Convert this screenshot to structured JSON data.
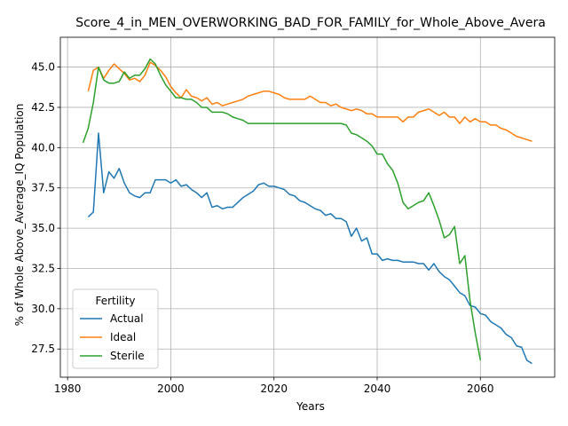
{
  "chart_data": {
    "type": "line",
    "title": "Score_4_in_MEN_OVERWORKING_BAD_FOR_FAMILY_for_Whole_Above_Avera",
    "xlabel": "Years",
    "ylabel": "% of Whole Above_Average_IQ Population",
    "xlim": [
      1978.6,
      2074.4
    ],
    "ylim": [
      25.75,
      46.85
    ],
    "xticks": [
      1980,
      2000,
      2020,
      2040,
      2060
    ],
    "yticks": [
      27.5,
      30.0,
      32.5,
      35.0,
      37.5,
      40.0,
      42.5,
      45.0
    ],
    "xtick_labels": [
      "1980",
      "2000",
      "2020",
      "2040",
      "2060"
    ],
    "ytick_labels": [
      "27.5",
      "30.0",
      "32.5",
      "35.0",
      "37.5",
      "40.0",
      "42.5",
      "45.0"
    ],
    "grid": true,
    "legend": {
      "title": "Fertility",
      "placement": "lower-left"
    },
    "series": [
      {
        "name": "Actual",
        "color": "#1f77b4",
        "x": [
          1984,
          1985,
          1986,
          1987,
          1988,
          1989,
          1990,
          1991,
          1992,
          1993,
          1994,
          1995,
          1996,
          1997,
          1998,
          1999,
          2000,
          2001,
          2002,
          2003,
          2004,
          2005,
          2006,
          2007,
          2008,
          2009,
          2010,
          2011,
          2012,
          2013,
          2014,
          2015,
          2016,
          2017,
          2018,
          2019,
          2020,
          2021,
          2022,
          2023,
          2024,
          2025,
          2026,
          2027,
          2028,
          2029,
          2030,
          2031,
          2032,
          2033,
          2034,
          2035,
          2036,
          2037,
          2038,
          2039,
          2040,
          2041,
          2042,
          2043,
          2044,
          2045,
          2046,
          2047,
          2048,
          2049,
          2050,
          2051,
          2052,
          2053,
          2054,
          2055,
          2056,
          2057,
          2058,
          2059,
          2060,
          2061,
          2062,
          2063,
          2064,
          2065,
          2066,
          2067,
          2068,
          2069,
          2070
        ],
        "values": [
          35.7,
          36.0,
          40.9,
          37.2,
          38.5,
          38.1,
          38.7,
          37.8,
          37.2,
          37.0,
          36.9,
          37.2,
          37.2,
          38.0,
          38.0,
          38.0,
          37.8,
          38.0,
          37.6,
          37.7,
          37.4,
          37.2,
          36.9,
          37.2,
          36.3,
          36.4,
          36.2,
          36.3,
          36.3,
          36.6,
          36.9,
          37.1,
          37.3,
          37.7,
          37.8,
          37.6,
          37.6,
          37.5,
          37.4,
          37.1,
          37.0,
          36.7,
          36.6,
          36.4,
          36.2,
          36.1,
          35.8,
          35.9,
          35.6,
          35.6,
          35.4,
          34.5,
          35.0,
          34.2,
          34.4,
          33.4,
          33.4,
          33.0,
          33.1,
          33.0,
          33.0,
          32.9,
          32.9,
          32.9,
          32.8,
          32.8,
          32.4,
          32.8,
          32.3,
          32.0,
          31.8,
          31.4,
          31.0,
          30.8,
          30.2,
          30.1,
          29.7,
          29.6,
          29.2,
          29.0,
          28.8,
          28.4,
          28.2,
          27.7,
          27.6,
          26.8,
          26.6
        ]
      },
      {
        "name": "Ideal",
        "color": "#ff7f0e",
        "x": [
          1984,
          1985,
          1986,
          1987,
          1988,
          1989,
          1990,
          1991,
          1992,
          1993,
          1994,
          1995,
          1996,
          1997,
          1998,
          1999,
          2000,
          2001,
          2002,
          2003,
          2004,
          2005,
          2006,
          2007,
          2008,
          2009,
          2010,
          2011,
          2012,
          2013,
          2014,
          2015,
          2016,
          2017,
          2018,
          2019,
          2020,
          2021,
          2022,
          2023,
          2024,
          2025,
          2026,
          2027,
          2028,
          2029,
          2030,
          2031,
          2032,
          2033,
          2034,
          2035,
          2036,
          2037,
          2038,
          2039,
          2040,
          2041,
          2042,
          2043,
          2044,
          2045,
          2046,
          2047,
          2048,
          2049,
          2050,
          2051,
          2052,
          2053,
          2054,
          2055,
          2056,
          2057,
          2058,
          2059,
          2060,
          2061,
          2062,
          2063,
          2064,
          2065,
          2066,
          2067,
          2068,
          2069,
          2070
        ],
        "values": [
          43.5,
          44.8,
          45.0,
          44.3,
          44.8,
          45.2,
          44.9,
          44.6,
          44.2,
          44.3,
          44.1,
          44.5,
          45.3,
          45.1,
          44.8,
          44.4,
          43.8,
          43.4,
          43.1,
          43.6,
          43.2,
          43.1,
          42.9,
          43.1,
          42.7,
          42.8,
          42.6,
          42.7,
          42.8,
          42.9,
          43.0,
          43.2,
          43.3,
          43.4,
          43.5,
          43.5,
          43.4,
          43.3,
          43.1,
          43.0,
          43.0,
          43.0,
          43.0,
          43.2,
          43.0,
          42.8,
          42.8,
          42.6,
          42.7,
          42.5,
          42.4,
          42.3,
          42.4,
          42.3,
          42.1,
          42.1,
          41.9,
          41.9,
          41.9,
          41.9,
          41.9,
          41.6,
          41.9,
          41.9,
          42.2,
          42.3,
          42.4,
          42.2,
          42.0,
          42.2,
          41.9,
          41.9,
          41.5,
          41.9,
          41.6,
          41.8,
          41.6,
          41.6,
          41.4,
          41.4,
          41.2,
          41.1,
          40.9,
          40.7,
          40.6,
          40.5,
          40.4
        ]
      },
      {
        "name": "Sterile",
        "color": "#2ca02c",
        "x": [
          1983,
          1984,
          1985,
          1986,
          1987,
          1988,
          1989,
          1990,
          1991,
          1992,
          1993,
          1994,
          1995,
          1996,
          1997,
          1998,
          1999,
          2000,
          2001,
          2002,
          2003,
          2004,
          2005,
          2006,
          2007,
          2008,
          2009,
          2010,
          2011,
          2012,
          2013,
          2014,
          2015,
          2016,
          2017,
          2018,
          2019,
          2020,
          2021,
          2022,
          2023,
          2024,
          2025,
          2026,
          2027,
          2028,
          2029,
          2030,
          2031,
          2032,
          2033,
          2034,
          2035,
          2036,
          2037,
          2038,
          2039,
          2040,
          2041,
          2042,
          2043,
          2044,
          2045,
          2046,
          2047,
          2048,
          2049,
          2050,
          2051,
          2052,
          2053,
          2054,
          2055,
          2056,
          2057,
          2058,
          2059,
          2060
        ],
        "values": [
          40.3,
          41.2,
          42.8,
          45.0,
          44.2,
          44.0,
          44.0,
          44.1,
          44.7,
          44.3,
          44.5,
          44.5,
          44.9,
          45.5,
          45.2,
          44.5,
          43.9,
          43.5,
          43.1,
          43.1,
          43.0,
          43.0,
          42.8,
          42.5,
          42.5,
          42.2,
          42.2,
          42.2,
          42.1,
          41.9,
          41.8,
          41.7,
          41.5,
          41.5,
          41.5,
          41.5,
          41.5,
          41.5,
          41.5,
          41.5,
          41.5,
          41.5,
          41.5,
          41.5,
          41.5,
          41.5,
          41.5,
          41.5,
          41.5,
          41.5,
          41.5,
          41.4,
          40.9,
          40.8,
          40.6,
          40.4,
          40.1,
          39.6,
          39.6,
          39.0,
          38.6,
          37.8,
          36.6,
          36.2,
          36.4,
          36.6,
          36.7,
          37.2,
          36.4,
          35.5,
          34.4,
          34.6,
          35.1,
          32.8,
          33.3,
          30.5,
          28.5,
          26.8
        ]
      }
    ]
  }
}
